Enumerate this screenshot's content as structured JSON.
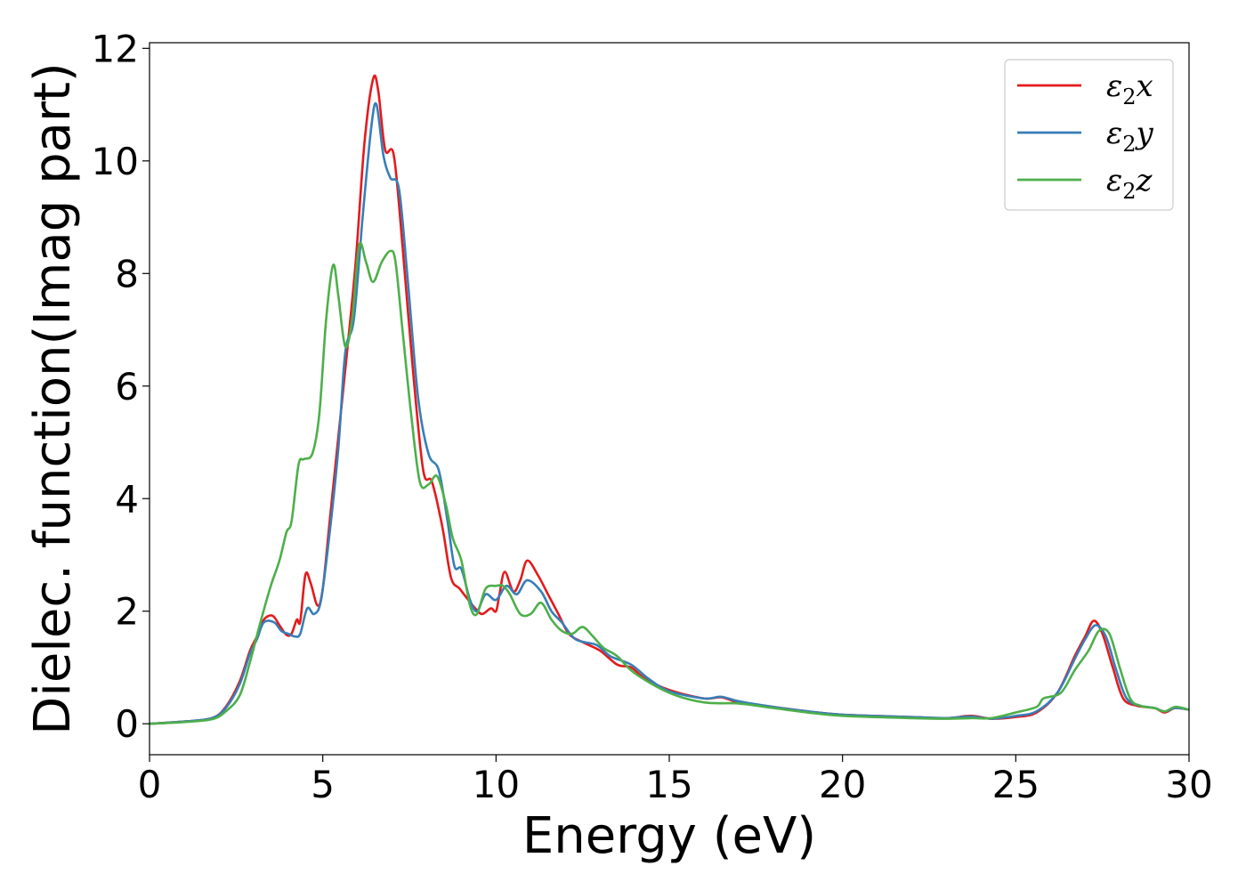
{
  "chart_data": {
    "type": "line",
    "title": "",
    "xlabel": "Energy (eV)",
    "ylabel": "Dielec. function(Imag part)",
    "xlim": [
      0,
      30
    ],
    "ylim": [
      -0.55,
      12.1
    ],
    "xticks": [
      0,
      5,
      10,
      15,
      20,
      25,
      30
    ],
    "yticks": [
      0,
      2,
      4,
      6,
      8,
      10,
      12
    ],
    "grid": false,
    "legend_position": "top-right",
    "series": [
      {
        "name": "ε₂x",
        "legend_base": "ε",
        "legend_sub": "2",
        "legend_var": "x",
        "color": "#e41a1c",
        "points": [
          [
            0,
            0
          ],
          [
            1,
            0.04
          ],
          [
            1.8,
            0.1
          ],
          [
            2.2,
            0.3
          ],
          [
            2.6,
            0.75
          ],
          [
            2.9,
            1.3
          ],
          [
            3.1,
            1.55
          ],
          [
            3.3,
            1.85
          ],
          [
            3.55,
            1.92
          ],
          [
            3.75,
            1.75
          ],
          [
            3.95,
            1.58
          ],
          [
            4.1,
            1.6
          ],
          [
            4.25,
            1.85
          ],
          [
            4.35,
            1.82
          ],
          [
            4.5,
            2.65
          ],
          [
            4.65,
            2.5
          ],
          [
            4.85,
            2.1
          ],
          [
            5.0,
            2.4
          ],
          [
            5.2,
            3.6
          ],
          [
            5.45,
            5.1
          ],
          [
            5.7,
            6.6
          ],
          [
            5.95,
            8.2
          ],
          [
            6.2,
            10.3
          ],
          [
            6.45,
            11.45
          ],
          [
            6.6,
            11.25
          ],
          [
            6.8,
            10.2
          ],
          [
            7.05,
            10.1
          ],
          [
            7.3,
            8.5
          ],
          [
            7.6,
            6.3
          ],
          [
            7.9,
            4.5
          ],
          [
            8.15,
            4.3
          ],
          [
            8.45,
            3.5
          ],
          [
            8.7,
            2.6
          ],
          [
            8.95,
            2.4
          ],
          [
            9.2,
            2.2
          ],
          [
            9.4,
            2.05
          ],
          [
            9.6,
            1.95
          ],
          [
            9.85,
            2.05
          ],
          [
            10.0,
            2.0
          ],
          [
            10.1,
            2.3
          ],
          [
            10.25,
            2.7
          ],
          [
            10.5,
            2.35
          ],
          [
            10.7,
            2.55
          ],
          [
            10.9,
            2.9
          ],
          [
            11.2,
            2.65
          ],
          [
            11.5,
            2.3
          ],
          [
            11.8,
            1.95
          ],
          [
            12.1,
            1.6
          ],
          [
            12.5,
            1.45
          ],
          [
            13.0,
            1.3
          ],
          [
            13.5,
            1.05
          ],
          [
            13.9,
            1.0
          ],
          [
            14.3,
            0.8
          ],
          [
            15.0,
            0.6
          ],
          [
            16.0,
            0.45
          ],
          [
            16.5,
            0.47
          ],
          [
            17.0,
            0.38
          ],
          [
            18.0,
            0.3
          ],
          [
            19.0,
            0.22
          ],
          [
            20.0,
            0.16
          ],
          [
            22.0,
            0.12
          ],
          [
            23.0,
            0.1
          ],
          [
            23.7,
            0.14
          ],
          [
            24.3,
            0.09
          ],
          [
            25.0,
            0.12
          ],
          [
            25.6,
            0.2
          ],
          [
            26.2,
            0.55
          ],
          [
            26.7,
            1.2
          ],
          [
            27.0,
            1.55
          ],
          [
            27.25,
            1.83
          ],
          [
            27.5,
            1.6
          ],
          [
            27.8,
            1.0
          ],
          [
            28.1,
            0.45
          ],
          [
            28.5,
            0.32
          ],
          [
            29.0,
            0.28
          ],
          [
            29.3,
            0.2
          ],
          [
            29.6,
            0.28
          ],
          [
            30.0,
            0.25
          ]
        ]
      },
      {
        "name": "ε₂y",
        "legend_base": "ε",
        "legend_sub": "2",
        "legend_var": "y",
        "color": "#377eb8",
        "points": [
          [
            0,
            0
          ],
          [
            1,
            0.04
          ],
          [
            1.8,
            0.1
          ],
          [
            2.2,
            0.28
          ],
          [
            2.6,
            0.7
          ],
          [
            2.9,
            1.25
          ],
          [
            3.1,
            1.5
          ],
          [
            3.3,
            1.8
          ],
          [
            3.6,
            1.8
          ],
          [
            3.8,
            1.65
          ],
          [
            4.0,
            1.6
          ],
          [
            4.2,
            1.55
          ],
          [
            4.35,
            1.6
          ],
          [
            4.55,
            2.05
          ],
          [
            4.75,
            1.95
          ],
          [
            4.95,
            2.2
          ],
          [
            5.2,
            3.4
          ],
          [
            5.45,
            4.9
          ],
          [
            5.65,
            6.6
          ],
          [
            5.9,
            7.2
          ],
          [
            6.15,
            9.0
          ],
          [
            6.4,
            10.6
          ],
          [
            6.55,
            11.0
          ],
          [
            6.75,
            10.1
          ],
          [
            6.95,
            9.7
          ],
          [
            7.2,
            9.5
          ],
          [
            7.45,
            7.9
          ],
          [
            7.75,
            5.8
          ],
          [
            8.05,
            4.8
          ],
          [
            8.35,
            4.5
          ],
          [
            8.6,
            3.6
          ],
          [
            8.8,
            2.8
          ],
          [
            9.0,
            2.75
          ],
          [
            9.25,
            2.2
          ],
          [
            9.45,
            2.0
          ],
          [
            9.7,
            2.3
          ],
          [
            10.0,
            2.2
          ],
          [
            10.3,
            2.45
          ],
          [
            10.6,
            2.3
          ],
          [
            10.9,
            2.55
          ],
          [
            11.3,
            2.35
          ],
          [
            11.6,
            2.0
          ],
          [
            11.9,
            1.8
          ],
          [
            12.3,
            1.5
          ],
          [
            12.9,
            1.4
          ],
          [
            13.3,
            1.2
          ],
          [
            13.9,
            1.05
          ],
          [
            14.4,
            0.8
          ],
          [
            15.0,
            0.58
          ],
          [
            16.0,
            0.45
          ],
          [
            16.5,
            0.48
          ],
          [
            17.0,
            0.4
          ],
          [
            18.0,
            0.3
          ],
          [
            19.0,
            0.22
          ],
          [
            20.0,
            0.16
          ],
          [
            22.0,
            0.12
          ],
          [
            23.0,
            0.1
          ],
          [
            23.7,
            0.13
          ],
          [
            24.3,
            0.09
          ],
          [
            25.0,
            0.14
          ],
          [
            25.6,
            0.22
          ],
          [
            26.2,
            0.55
          ],
          [
            26.7,
            1.15
          ],
          [
            27.0,
            1.5
          ],
          [
            27.3,
            1.75
          ],
          [
            27.6,
            1.55
          ],
          [
            27.9,
            0.95
          ],
          [
            28.2,
            0.45
          ],
          [
            28.6,
            0.32
          ],
          [
            29.0,
            0.28
          ],
          [
            29.3,
            0.22
          ],
          [
            29.6,
            0.28
          ],
          [
            30.0,
            0.25
          ]
        ]
      },
      {
        "name": "ε₂z",
        "legend_base": "ε",
        "legend_sub": "2",
        "legend_var": "z",
        "color": "#4daf4a",
        "points": [
          [
            0,
            0
          ],
          [
            1,
            0.03
          ],
          [
            1.8,
            0.08
          ],
          [
            2.2,
            0.22
          ],
          [
            2.6,
            0.5
          ],
          [
            2.9,
            1.1
          ],
          [
            3.2,
            1.8
          ],
          [
            3.5,
            2.45
          ],
          [
            3.75,
            2.9
          ],
          [
            3.95,
            3.4
          ],
          [
            4.1,
            3.6
          ],
          [
            4.3,
            4.6
          ],
          [
            4.45,
            4.7
          ],
          [
            4.7,
            4.8
          ],
          [
            4.9,
            5.5
          ],
          [
            5.1,
            7.2
          ],
          [
            5.3,
            8.15
          ],
          [
            5.45,
            7.6
          ],
          [
            5.65,
            6.7
          ],
          [
            5.85,
            7.2
          ],
          [
            6.05,
            8.5
          ],
          [
            6.25,
            8.2
          ],
          [
            6.45,
            7.85
          ],
          [
            6.7,
            8.2
          ],
          [
            6.95,
            8.4
          ],
          [
            7.1,
            8.2
          ],
          [
            7.3,
            7.0
          ],
          [
            7.55,
            5.5
          ],
          [
            7.8,
            4.3
          ],
          [
            8.05,
            4.25
          ],
          [
            8.3,
            4.4
          ],
          [
            8.55,
            3.9
          ],
          [
            8.75,
            3.3
          ],
          [
            9.0,
            2.9
          ],
          [
            9.25,
            2.1
          ],
          [
            9.45,
            1.95
          ],
          [
            9.7,
            2.4
          ],
          [
            10.0,
            2.45
          ],
          [
            10.2,
            2.45
          ],
          [
            10.4,
            2.3
          ],
          [
            10.7,
            1.95
          ],
          [
            11.0,
            1.95
          ],
          [
            11.3,
            2.15
          ],
          [
            11.6,
            1.85
          ],
          [
            11.9,
            1.65
          ],
          [
            12.2,
            1.6
          ],
          [
            12.5,
            1.72
          ],
          [
            12.8,
            1.55
          ],
          [
            13.1,
            1.35
          ],
          [
            13.5,
            1.2
          ],
          [
            14.0,
            0.9
          ],
          [
            15.0,
            0.55
          ],
          [
            16.0,
            0.38
          ],
          [
            17.0,
            0.36
          ],
          [
            18.0,
            0.28
          ],
          [
            19.0,
            0.2
          ],
          [
            20.0,
            0.14
          ],
          [
            22.0,
            0.1
          ],
          [
            23.0,
            0.09
          ],
          [
            23.7,
            0.1
          ],
          [
            24.3,
            0.1
          ],
          [
            25.0,
            0.2
          ],
          [
            25.6,
            0.3
          ],
          [
            25.8,
            0.45
          ],
          [
            26.3,
            0.55
          ],
          [
            26.7,
            0.95
          ],
          [
            27.1,
            1.3
          ],
          [
            27.4,
            1.65
          ],
          [
            27.7,
            1.6
          ],
          [
            28.0,
            1.0
          ],
          [
            28.3,
            0.45
          ],
          [
            28.6,
            0.32
          ],
          [
            29.0,
            0.28
          ],
          [
            29.3,
            0.22
          ],
          [
            29.6,
            0.3
          ],
          [
            30.0,
            0.25
          ]
        ]
      }
    ]
  }
}
